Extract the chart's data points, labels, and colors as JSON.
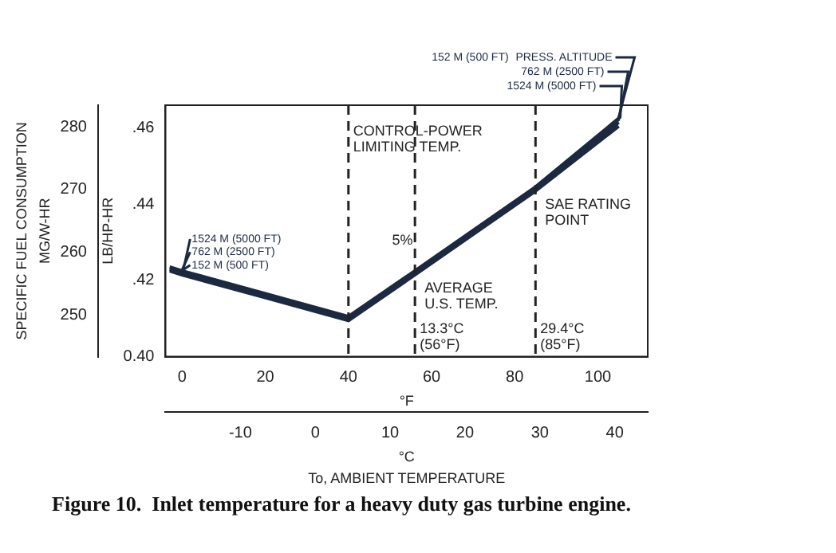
{
  "chart_data": {
    "type": "line",
    "title": "Figure 10.  Inlet temperature for a heavy duty gas turbine engine.",
    "xlabel": "°F",
    "x2label": "°C",
    "ylabel": "LB/HP-HR",
    "y2label": "MG/W-HR",
    "x": [
      -3,
      0,
      20,
      40,
      56,
      85,
      105
    ],
    "series": [
      {
        "name": "152 M (500 FT)",
        "color": "#1c2940",
        "values": [
          0.4225,
          0.4215,
          0.4155,
          0.4095,
          0.4215,
          0.4435,
          0.4605
        ]
      },
      {
        "name": "762 M (2500 FT)",
        "color": "#1c2940",
        "values": [
          0.423,
          0.422,
          0.416,
          0.41,
          0.422,
          0.444,
          0.4615
        ]
      },
      {
        "name": "1524 M (5000 FT)",
        "color": "#1c2940",
        "values": [
          0.4235,
          0.4225,
          0.4165,
          0.4105,
          0.4225,
          0.4445,
          0.4625
        ]
      }
    ],
    "xlim": [
      -4,
      112
    ],
    "xticks": [
      0,
      20,
      40,
      60,
      80,
      100
    ],
    "x2lim": [
      -20,
      44.4
    ],
    "x2ticks": [
      -10,
      0,
      10,
      20,
      30,
      40
    ],
    "ylim": [
      0.4,
      0.466
    ],
    "yticks": [
      {
        "value": 0.4,
        "label": "0.40"
      },
      {
        "value": 0.42,
        "label": ".42"
      },
      {
        "value": 0.44,
        "label": ".44"
      },
      {
        "value": 0.46,
        "label": ".46"
      }
    ],
    "y2lim": [
      243.3,
      283.5
    ],
    "y2ticks": [
      250,
      260,
      270,
      280
    ],
    "ref_lines": [
      {
        "axis": "x",
        "value": 40,
        "label": "CONTROL-POWER\nLIMITING TEMP.",
        "line_style": "dashed"
      },
      {
        "axis": "x",
        "value": 56,
        "label": "13.3°C\n(56°F)",
        "line_style": "dashed"
      },
      {
        "axis": "x",
        "value": 85,
        "label": "29.4°C\n(85°F)",
        "line_style": "dashed"
      }
    ],
    "annotations": [
      "SPECIFIC FUEL CONSUMPTION",
      "To, AMBIENT TEMPERATURE",
      {
        "text": "PRESS. ALTITUDE",
        "x": 105,
        "y": 0.4605
      },
      {
        "text": "AVERAGE\nU.S. TEMP.",
        "x": 56,
        "y": 0.4215
      },
      {
        "text": "SAE RATING\nPOINT",
        "x": 85,
        "y": 0.4435
      },
      "5%"
    ],
    "grid": false,
    "legend": "left",
    "marker": "none",
    "line_style": "solid"
  }
}
